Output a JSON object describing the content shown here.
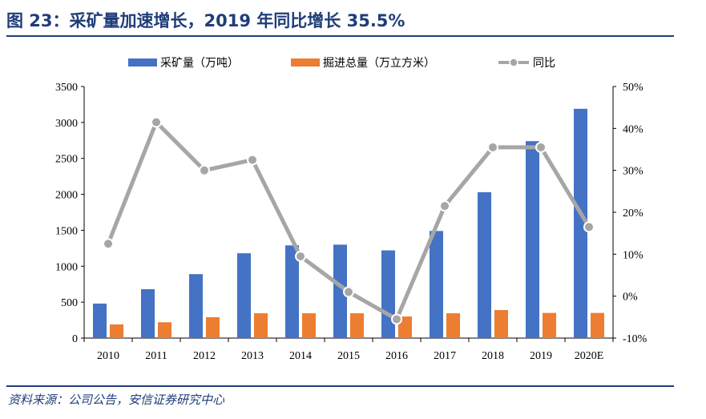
{
  "header": {
    "title": "图 23：采矿量加速增长，2019 年同比增长 35.5%"
  },
  "footer": {
    "source": "资料来源：公司公告，安信证券研究中心"
  },
  "chart_data": {
    "type": "bar",
    "title": "",
    "categories": [
      "2010",
      "2011",
      "2012",
      "2013",
      "2014",
      "2015",
      "2016",
      "2017",
      "2018",
      "2019",
      "2020E"
    ],
    "series": [
      {
        "name": "采矿量（万吨）",
        "type": "bar",
        "axis": "left",
        "color": "#4472C4",
        "values": [
          480,
          680,
          890,
          1180,
          1290,
          1300,
          1220,
          1490,
          2030,
          2740,
          3190
        ]
      },
      {
        "name": "掘进总量（万立方米）",
        "type": "bar",
        "axis": "left",
        "color": "#ED7D31",
        "values": [
          190,
          220,
          290,
          345,
          345,
          345,
          300,
          345,
          390,
          350,
          350
        ]
      },
      {
        "name": "同比",
        "type": "line",
        "axis": "right",
        "color": "#A6A6A6",
        "values": [
          12.5,
          41.5,
          30.0,
          32.5,
          9.5,
          1.0,
          -5.5,
          21.5,
          35.5,
          35.5,
          16.5
        ]
      }
    ],
    "y_left": {
      "min": 0,
      "max": 3500,
      "ticks": [
        "0",
        "500",
        "1000",
        "1500",
        "2000",
        "2500",
        "3000",
        "3500"
      ]
    },
    "y_right": {
      "min": -10,
      "max": 50,
      "ticks": [
        "-10%",
        "0%",
        "10%",
        "20%",
        "30%",
        "40%",
        "50%"
      ]
    },
    "legend_position": "top",
    "grid": false
  }
}
